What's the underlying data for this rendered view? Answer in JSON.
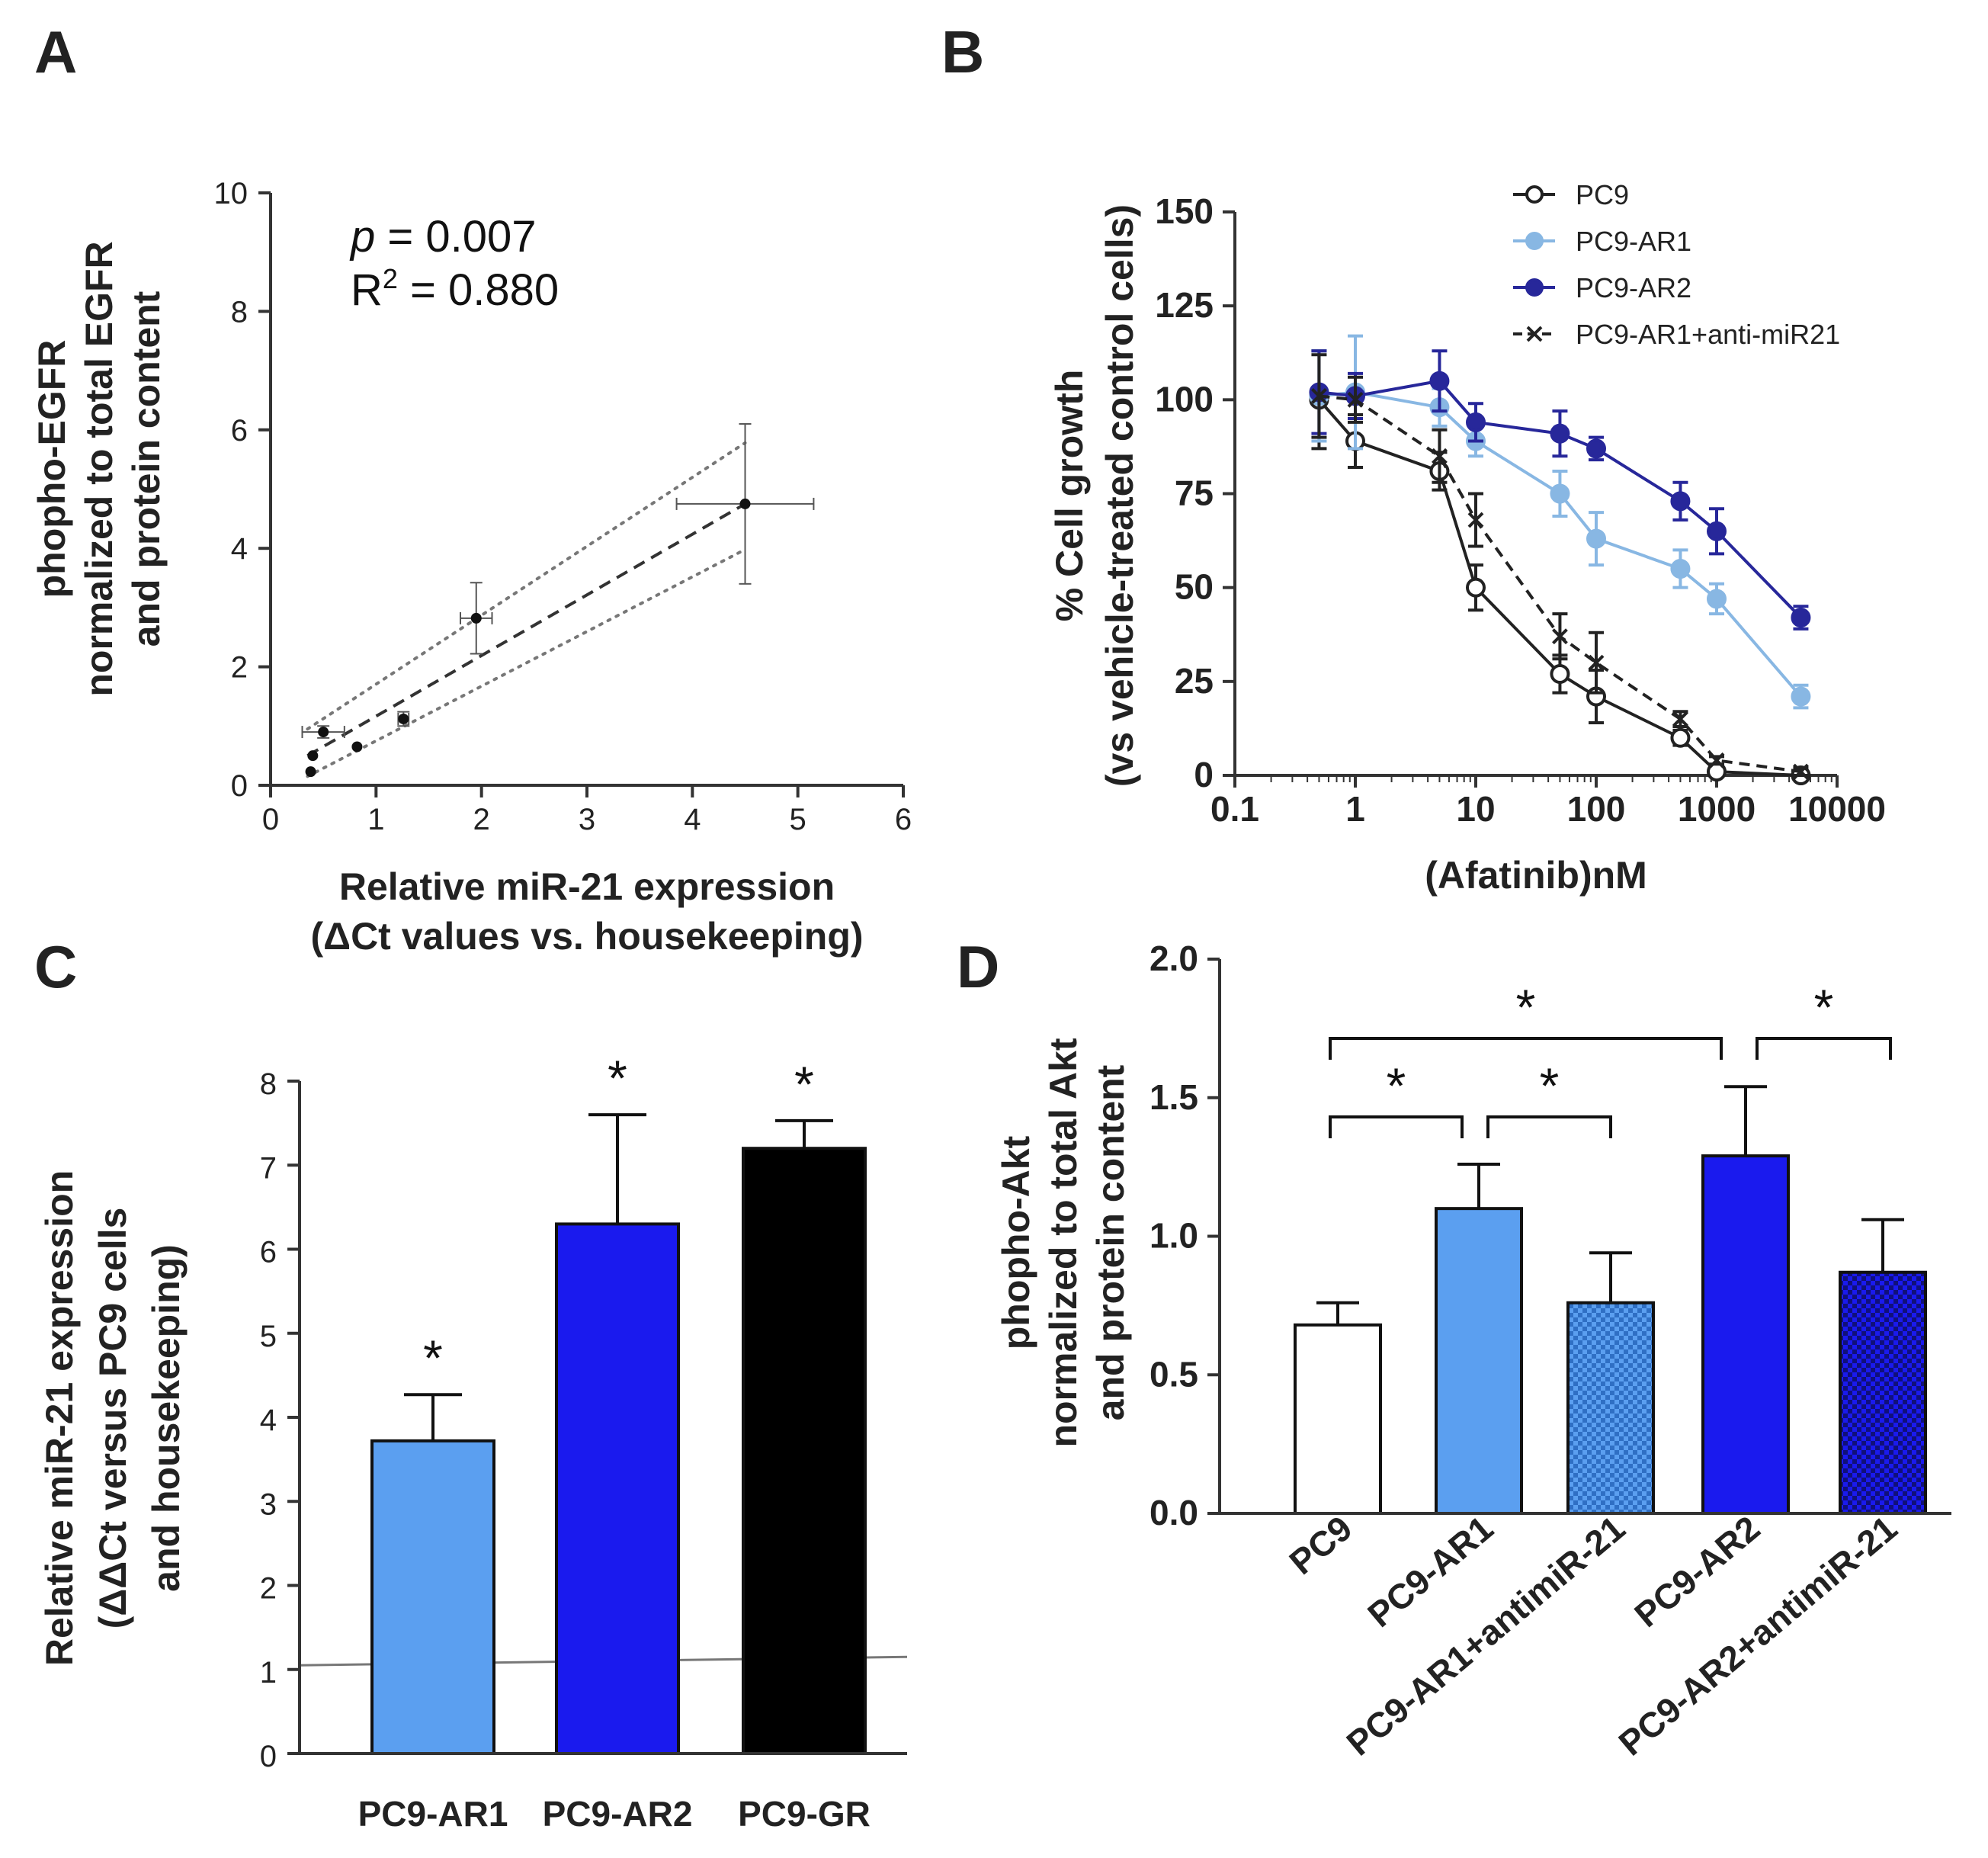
{
  "colors": {
    "axis": "#333333",
    "light_blue": "#5b9ff0",
    "blue": "#1a1aee",
    "black": "#000000",
    "curve_light": "#88b7e3",
    "curve_dark": "#27279a",
    "hatch_light": "#2f6fc4",
    "hatch_dark": "#10107a"
  },
  "chart_data": [
    {
      "panel": "A",
      "type": "scatter",
      "annotation_p_symbol": "p",
      "annotation_p_value": "= 0.007",
      "annotation_r_symbol": "R",
      "annotation_r_exp": "2",
      "annotation_r_value": "= 0.880",
      "xlabel_line1": "Relative miR-21 expression",
      "xlabel_line2": "(ΔCt values vs. housekeeping)",
      "ylabel_lines": [
        "phopho-EGFR",
        "normalized to total EGFR",
        "and protein content"
      ],
      "xlim": [
        0,
        6
      ],
      "ylim": [
        0,
        10
      ],
      "xticks": [
        0,
        1,
        2,
        3,
        4,
        5,
        6
      ],
      "yticks": [
        0,
        2,
        4,
        6,
        8,
        10
      ],
      "points": [
        {
          "x": 0.38,
          "y": 0.23,
          "xerr": 0.0,
          "yerr": 0.0
        },
        {
          "x": 0.4,
          "y": 0.5,
          "xerr": 0.0,
          "yerr": 0.0
        },
        {
          "x": 0.5,
          "y": 0.9,
          "xerr": 0.2,
          "yerr": 0.1
        },
        {
          "x": 0.82,
          "y": 0.65,
          "xerr": 0.0,
          "yerr": 0.0
        },
        {
          "x": 1.26,
          "y": 1.12,
          "xerr": 0.05,
          "yerr": 0.12
        },
        {
          "x": 1.95,
          "y": 2.82,
          "xerr": 0.15,
          "yerr": 0.6
        },
        {
          "x": 4.5,
          "y": 4.75,
          "xerr": 0.65,
          "yerr": 1.35
        }
      ],
      "fit": {
        "x": [
          0.35,
          4.5
        ],
        "y": [
          0.5,
          4.75
        ]
      },
      "ci_upper": {
        "x": [
          0.35,
          4.5
        ],
        "y": [
          0.95,
          5.78
        ]
      },
      "ci_lower": {
        "x": [
          0.35,
          4.5
        ],
        "y": [
          0.15,
          3.98
        ]
      }
    },
    {
      "panel": "B",
      "type": "line",
      "xscale": "log",
      "xlabel": "(Afatinib)nM",
      "ylabel_lines": [
        "% Cell growth",
        "(vs vehicle-treated control cells)"
      ],
      "xlim": [
        0.1,
        10000
      ],
      "ylim": [
        0,
        150
      ],
      "xticks": [
        0.1,
        1,
        10,
        100,
        1000,
        10000
      ],
      "xtick_labels": [
        "0.1",
        "1",
        "10",
        "100",
        "1000",
        "10000"
      ],
      "yticks": [
        0,
        25,
        50,
        75,
        100,
        125,
        150
      ],
      "x": [
        0.5,
        1,
        5,
        10,
        50,
        100,
        500,
        1000,
        5000
      ],
      "series": [
        {
          "name": "PC9",
          "values": [
            100,
            89,
            81,
            50,
            27,
            21,
            10,
            1,
            0
          ],
          "errors": [
            13,
            7,
            5,
            6,
            5,
            7,
            2,
            1,
            1
          ],
          "style": "open"
        },
        {
          "name": "PC9-AR1",
          "values": [
            101,
            102,
            98,
            89,
            75,
            63,
            55,
            47,
            21
          ],
          "errors": [
            12,
            15,
            5,
            4,
            6,
            7,
            5,
            4,
            3
          ],
          "style": "light"
        },
        {
          "name": "PC9-AR2",
          "values": [
            102,
            101,
            105,
            94,
            91,
            87,
            73,
            65,
            42
          ],
          "errors": [
            11,
            6,
            8,
            5,
            6,
            3,
            5,
            6,
            3
          ],
          "style": "dark"
        },
        {
          "name": "PC9-AR1+anti-miR21",
          "values": [
            101,
            100,
            85,
            68,
            37,
            30,
            15,
            4,
            1
          ],
          "errors": [
            11,
            6,
            7,
            7,
            6,
            8,
            2,
            1,
            1
          ],
          "style": "cross"
        }
      ]
    },
    {
      "panel": "C",
      "type": "bar",
      "categories": [
        "PC9-AR1",
        "PC9-AR2",
        "PC9-GR"
      ],
      "values": [
        3.72,
        6.3,
        7.2
      ],
      "errors": [
        0.55,
        1.3,
        0.33
      ],
      "significance": [
        "*",
        "*",
        "*"
      ],
      "ylabel_lines": [
        "Relative miR-21 expression",
        "(ΔΔCt versus PC9 cells",
        "and housekeeping)"
      ],
      "ylim": [
        0,
        8
      ],
      "yticks": [
        0,
        1,
        2,
        3,
        4,
        5,
        6,
        7,
        8
      ],
      "reference_line": {
        "y_start": 1.05,
        "y_end": 1.15
      }
    },
    {
      "panel": "D",
      "type": "bar",
      "categories": [
        "PC9",
        "PC9-AR1",
        "PC9-AR1+antimiR-21",
        "PC9-AR2",
        "PC9-AR2+antimiR-21"
      ],
      "values": [
        0.68,
        1.1,
        0.76,
        1.29,
        0.87
      ],
      "errors": [
        0.08,
        0.16,
        0.18,
        0.25,
        0.19
      ],
      "ylabel_lines": [
        "phopho-Akt",
        "normalized to total Akt",
        "and protein content"
      ],
      "ylim": [
        0,
        2.0
      ],
      "yticks": [
        0,
        0.5,
        1.0,
        1.5,
        2.0
      ],
      "ytick_labels": [
        "0.0",
        "0.5",
        "1.0",
        "1.5",
        "2.0"
      ],
      "comparisons": [
        {
          "from": 0,
          "to": 1,
          "label": "*"
        },
        {
          "from": 1,
          "to": 2,
          "label": "*"
        },
        {
          "from": 0,
          "to": 3,
          "label": "*"
        },
        {
          "from": 3,
          "to": 4,
          "label": "*"
        }
      ]
    }
  ],
  "panel_labels": {
    "a": "A",
    "b": "B",
    "c": "C",
    "d": "D"
  }
}
